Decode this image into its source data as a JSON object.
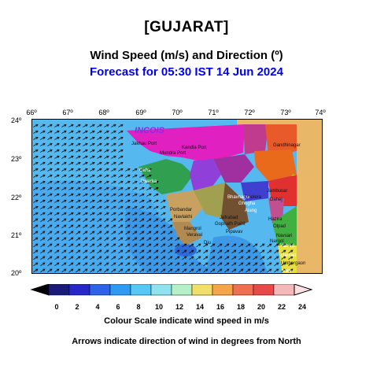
{
  "header": {
    "region": "[GUJARAT]",
    "parameter": "Wind Speed (m/s) and Direction (º)",
    "forecast": "Forecast for  05:30 IST 14 Jun 2024"
  },
  "axes": {
    "longitude_labels": [
      "66º",
      "67º",
      "68º",
      "69º",
      "70º",
      "71º",
      "72º",
      "73º",
      "74º"
    ],
    "latitude_labels": [
      "24º",
      "23º",
      "22º",
      "21º",
      "20º"
    ]
  },
  "logo_text": "INCOIS",
  "places": [
    "Jakhau Port",
    "Kandla Port",
    "Mundra Port",
    "Okha",
    "Dwarka",
    "Porbandar",
    "Navlakhi",
    "Mangrol",
    "Veraval",
    "Diu",
    "Bhavnagar",
    "Dholera",
    "Ghogha",
    "Alang",
    "Gopnath Point",
    "Pipavav",
    "Hazira",
    "Dahej",
    "Valsad",
    "Daman",
    "Umbergaon",
    "Gandhinagar",
    "Jambusar",
    "Olpad",
    "Navsari",
    "Vapi",
    "Nargol",
    "Jafrabad"
  ],
  "colorbar": {
    "ticks": [
      "0",
      "2",
      "4",
      "6",
      "8",
      "10",
      "12",
      "14",
      "16",
      "18",
      "20",
      "22",
      "24"
    ],
    "colors": [
      "#1a1a7a",
      "#2828c8",
      "#2e62e8",
      "#2e9af2",
      "#55c8f5",
      "#8ee3ef",
      "#b6f0c8",
      "#f0e06a",
      "#f5a64a",
      "#ee7050",
      "#e84a4a",
      "#f5b8b8",
      "#fde0e0"
    ],
    "caption": "Colour Scale indicate wind speed in m/s"
  },
  "arrow_caption": "Arrows indicate direction of wind in degrees from North",
  "colors": {
    "sea_light": "#55b8ef",
    "sea_mid": "#3d98e6",
    "sea_dark": "#2e6ad8",
    "land_outside": "#e8b868"
  }
}
